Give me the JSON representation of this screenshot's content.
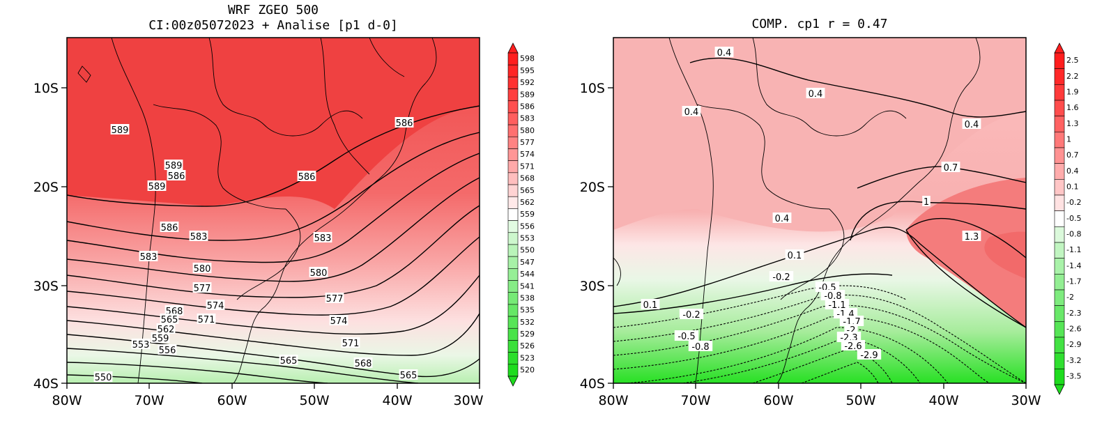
{
  "panels": [
    {
      "title_lines": [
        "WRF ZGEO 500",
        "CI:00z05072023 + Analise  [p1 d-0]"
      ],
      "x_ticks": [
        "80W",
        "70W",
        "60W",
        "50W",
        "40W",
        "30W"
      ],
      "y_ticks": [
        "10S",
        "20S",
        "30S",
        "40S"
      ],
      "colorbar_labels": [
        "598",
        "595",
        "592",
        "589",
        "586",
        "583",
        "580",
        "577",
        "574",
        "571",
        "568",
        "565",
        "562",
        "559",
        "556",
        "553",
        "550",
        "547",
        "544",
        "541",
        "538",
        "535",
        "532",
        "529",
        "526",
        "523",
        "520"
      ],
      "colorbar_top": "#ff1e1e",
      "colorbar_bottom": "#1edc1e",
      "contour_labels": [
        "589",
        "589",
        "586",
        "589",
        "586",
        "586",
        "586",
        "583",
        "583",
        "583",
        "580",
        "580",
        "577",
        "577",
        "574",
        "574",
        "571",
        "571",
        "568",
        "568",
        "565",
        "565",
        "565",
        "562",
        "559",
        "553",
        "556",
        "550"
      ]
    },
    {
      "title_lines": [
        "COMP. cp1  r =  0.47"
      ],
      "x_ticks": [
        "80W",
        "70W",
        "60W",
        "50W",
        "40W",
        "30W"
      ],
      "y_ticks": [
        "10S",
        "20S",
        "30S",
        "40S"
      ],
      "colorbar_labels": [
        "2.5",
        "2.2",
        "1.9",
        "1.6",
        "1.3",
        "1",
        "0.7",
        "0.4",
        "0.1",
        "-0.2",
        "-0.5",
        "-0.8",
        "-1.1",
        "-1.4",
        "-1.7",
        "-2",
        "-2.3",
        "-2.6",
        "-2.9",
        "-3.2",
        "-3.5"
      ],
      "colorbar_top": "#ff1e1e",
      "colorbar_bottom": "#1edc1e",
      "contour_labels": [
        "0.4",
        "0.4",
        "0.4",
        "0.4",
        "0.7",
        "1",
        "1.3",
        "0.4",
        "0.1",
        "0.1",
        "-0.2",
        "-0.2",
        "-0.5",
        "-0.8",
        "-1.1",
        "-1.4",
        "-1.7",
        "-2",
        "-2.3",
        "-2.6",
        "-2.9",
        "-0.5",
        "-0.8"
      ]
    }
  ]
}
